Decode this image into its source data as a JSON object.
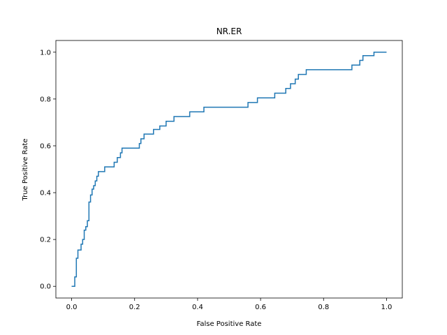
{
  "chart_data": {
    "type": "line",
    "title": "NR.ER",
    "xlabel": "False Positive Rate",
    "ylabel": "True Positive Rate",
    "xlim": [
      -0.05,
      1.05
    ],
    "ylim": [
      -0.05,
      1.05
    ],
    "xticks": [
      0.0,
      0.2,
      0.4,
      0.6,
      0.8,
      1.0
    ],
    "yticks": [
      0.0,
      0.2,
      0.4,
      0.6,
      0.8,
      1.0
    ],
    "xtick_labels": [
      "0.0",
      "0.2",
      "0.4",
      "0.6",
      "0.8",
      "1.0"
    ],
    "ytick_labels": [
      "0.0",
      "0.2",
      "0.4",
      "0.6",
      "0.8",
      "1.0"
    ],
    "grid": false,
    "line_color": "#1f77b4",
    "series": [
      {
        "name": "",
        "x": [
          0.0,
          0.01,
          0.01,
          0.015,
          0.015,
          0.02,
          0.02,
          0.03,
          0.03,
          0.035,
          0.035,
          0.04,
          0.04,
          0.045,
          0.045,
          0.05,
          0.05,
          0.055,
          0.055,
          0.06,
          0.06,
          0.065,
          0.065,
          0.07,
          0.07,
          0.075,
          0.075,
          0.08,
          0.08,
          0.085,
          0.085,
          0.105,
          0.105,
          0.135,
          0.135,
          0.145,
          0.145,
          0.155,
          0.155,
          0.16,
          0.16,
          0.215,
          0.215,
          0.22,
          0.22,
          0.23,
          0.23,
          0.26,
          0.26,
          0.28,
          0.28,
          0.3,
          0.3,
          0.325,
          0.325,
          0.375,
          0.375,
          0.42,
          0.42,
          0.56,
          0.56,
          0.59,
          0.59,
          0.645,
          0.645,
          0.68,
          0.68,
          0.695,
          0.695,
          0.71,
          0.71,
          0.72,
          0.72,
          0.745,
          0.745,
          0.89,
          0.89,
          0.915,
          0.915,
          0.925,
          0.925,
          0.96,
          0.96,
          1.0
        ],
        "y": [
          0.0,
          0.0,
          0.04,
          0.04,
          0.12,
          0.12,
          0.155,
          0.155,
          0.18,
          0.18,
          0.2,
          0.2,
          0.24,
          0.24,
          0.255,
          0.255,
          0.28,
          0.28,
          0.36,
          0.36,
          0.39,
          0.39,
          0.415,
          0.415,
          0.43,
          0.43,
          0.45,
          0.45,
          0.47,
          0.47,
          0.49,
          0.49,
          0.51,
          0.51,
          0.53,
          0.53,
          0.55,
          0.55,
          0.57,
          0.57,
          0.59,
          0.59,
          0.61,
          0.61,
          0.63,
          0.63,
          0.65,
          0.65,
          0.67,
          0.67,
          0.685,
          0.685,
          0.705,
          0.705,
          0.725,
          0.725,
          0.745,
          0.745,
          0.765,
          0.765,
          0.785,
          0.785,
          0.805,
          0.805,
          0.825,
          0.825,
          0.845,
          0.845,
          0.865,
          0.865,
          0.885,
          0.885,
          0.905,
          0.905,
          0.925,
          0.925,
          0.945,
          0.945,
          0.965,
          0.965,
          0.985,
          0.985,
          1.0,
          1.0
        ]
      }
    ]
  }
}
